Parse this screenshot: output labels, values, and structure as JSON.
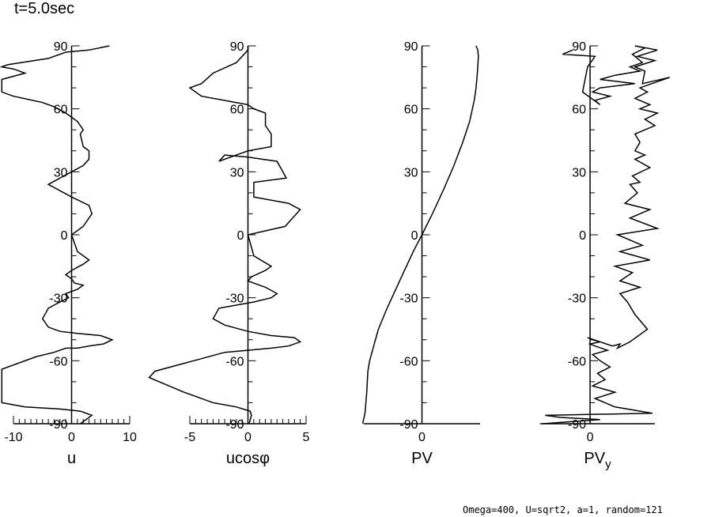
{
  "title": "t=5.0sec",
  "footer": "Omega=400, U=sqrt2, a=1, random=121",
  "chart_data": [
    {
      "type": "line",
      "name": "u",
      "xlabel": "u",
      "xlim": [
        -10,
        10
      ],
      "xticks": [
        -10,
        0,
        10
      ],
      "xtick_labels": [
        "-10",
        "0",
        "10"
      ],
      "ylim": [
        -90,
        90
      ],
      "yticks": [
        -90,
        -60,
        -30,
        0,
        30,
        60,
        90
      ],
      "ytick_labels": [
        "-90",
        "-60",
        "-30",
        "0",
        "30",
        "60",
        "90"
      ],
      "series": [
        {
          "name": "u",
          "x": [
            1.5,
            3.5,
            1.5,
            -2,
            -8,
            -12,
            -12,
            -6,
            -3,
            -2,
            -1,
            1,
            3,
            5.5,
            7,
            5,
            1,
            -2,
            -4,
            -5,
            -4,
            -2,
            -0.5,
            -1,
            1,
            2,
            0.5,
            0,
            -0.5,
            -1,
            0,
            2,
            3,
            1,
            0,
            2,
            3.5,
            3,
            0,
            -4,
            -2,
            2,
            3,
            3,
            2,
            1.5,
            2,
            1,
            -1,
            -3,
            -5,
            -10,
            -12,
            -12,
            -8,
            -10,
            -12,
            -11,
            -4,
            -1,
            3,
            6.5
          ],
          "y": [
            -90,
            -86,
            -84,
            -83,
            -82,
            -80,
            -64,
            -58,
            -56,
            -55,
            -54,
            -54,
            -53,
            -52,
            -50,
            -48,
            -47,
            -46,
            -44,
            -40,
            -35,
            -32,
            -30,
            -28,
            -26,
            -24,
            -23,
            -21,
            -20,
            -19,
            -17,
            -14,
            -12,
            -8,
            0,
            4,
            10,
            14,
            18,
            24,
            27,
            33,
            36,
            40,
            42,
            48,
            50,
            54,
            58,
            61,
            63,
            66,
            68,
            74,
            77,
            79,
            80,
            81,
            84,
            87,
            88,
            90
          ]
        }
      ]
    },
    {
      "type": "line",
      "name": "ucosphi",
      "xlabel": "ucosφ",
      "xlim": [
        -5,
        5
      ],
      "xticks": [
        -5,
        0,
        5
      ],
      "xtick_labels": [
        "-5",
        "0",
        "5"
      ],
      "ylim": [
        -90,
        90
      ],
      "yticks": [
        -90,
        -60,
        -30,
        0,
        30,
        60,
        90
      ],
      "ytick_labels": [
        "-90",
        "-60",
        "-30",
        "0",
        "30",
        "60",
        "90"
      ],
      "series": [
        {
          "name": "ucosφ",
          "x": [
            0.1,
            0.3,
            0.2,
            -1,
            -3,
            -5.5,
            -8.5,
            -8,
            -6,
            -4,
            -2,
            0,
            2,
            3.5,
            4.5,
            4,
            2,
            0,
            -2,
            -3,
            -2.5,
            0.5,
            2,
            2.5,
            1.5,
            0,
            0.3,
            1.5,
            2,
            0.5,
            0,
            3.2,
            4.5,
            3.5,
            0.5,
            0.5,
            3.3,
            2.5,
            0,
            -2,
            -2.5,
            0,
            2,
            2,
            1.5,
            1.5,
            1.5,
            0.5,
            0,
            -1,
            -4,
            -5,
            -4,
            -3,
            -1,
            0,
            0
          ],
          "y": [
            -90,
            -86,
            -84,
            -82,
            -80,
            -75,
            -68,
            -65,
            -62,
            -59,
            -56,
            -55,
            -54,
            -53,
            -51,
            -49,
            -48,
            -46,
            -43,
            -40,
            -35,
            -32,
            -30,
            -28,
            -25,
            -22,
            -20,
            -17,
            -15,
            -10,
            0,
            4,
            12,
            15,
            18,
            25,
            27,
            35,
            37,
            38,
            35,
            40,
            42,
            48,
            52,
            56,
            58,
            60,
            62,
            63,
            66,
            70,
            72,
            77,
            82,
            88,
            90
          ]
        }
      ]
    },
    {
      "type": "line",
      "name": "PV",
      "xlabel": "PV",
      "xlim": [
        -1,
        1
      ],
      "xticks": [
        0
      ],
      "xtick_labels": [
        "0"
      ],
      "ylim": [
        -90,
        90
      ],
      "yticks": [
        -90,
        -60,
        -30,
        0,
        30,
        60,
        90
      ],
      "ytick_labels": [
        "-90",
        "-60",
        "-30",
        "0",
        "30",
        "60",
        "90"
      ],
      "series": [
        {
          "name": "PV",
          "x": [
            -1.02,
            -0.98,
            -0.95,
            -0.93,
            -0.9,
            -0.85,
            -0.75,
            -0.6,
            -0.45,
            -0.3,
            -0.15,
            0,
            0.18,
            0.38,
            0.55,
            0.7,
            0.82,
            0.9,
            0.93,
            0.95,
            0.96,
            0.97,
            0.96,
            0.93
          ],
          "y": [
            -90,
            -85,
            -75,
            -65,
            -60,
            -55,
            -45,
            -35,
            -26,
            -17,
            -8,
            0,
            10,
            22,
            33,
            44,
            54,
            64,
            70,
            76,
            80,
            85,
            88,
            90
          ]
        }
      ]
    },
    {
      "type": "line",
      "name": "PVy",
      "xlabel": "PV",
      "xlabel_subscript": "y",
      "xlim": [
        -1,
        1.3
      ],
      "xticks": [
        0
      ],
      "xtick_labels": [
        "0"
      ],
      "ylim": [
        -90,
        90
      ],
      "yticks": [
        -90,
        -60,
        -30,
        0,
        30,
        60,
        90
      ],
      "ytick_labels": [
        "-90",
        "-60",
        "-30",
        "0",
        "30",
        "60",
        "90"
      ],
      "series": [
        {
          "name": "PV_y",
          "x": [
            -0.95,
            0.2,
            -0.6,
            -0.9,
            1.25,
            0.5,
            0.1,
            0.5,
            0.05,
            0.3,
            0.15,
            0.4,
            0.2,
            0.05,
            0.35,
            0.1,
            0,
            0.2,
            0.05,
            -0.05,
            0.45,
            0.6,
            0.55,
            0.8,
            1.15,
            0.9,
            0.75,
            0.6,
            1.0,
            0.6,
            0.85,
            0.5,
            1.2,
            0.6,
            1.05,
            0.55,
            1.35,
            0.8,
            1.2,
            0.7,
            0.95,
            0.8,
            1.0,
            0.85,
            1.2,
            0.9,
            1.1,
            0.9,
            1.0,
            0.9,
            1.3,
            1.1,
            1.35,
            1.0,
            1.2,
            0.9,
            1.15,
            1.0,
            1.6,
            1.05,
            1.1,
            0.9,
            1.3,
            0.95,
            1.35,
            0.9,
            1.1,
            0.85,
            1.05,
            0.8,
            1.0,
            0.5,
            0.2,
            0.9,
            0.2,
            0.05,
            0.4,
            0.1,
            0.2,
            -0.15,
            -0.05,
            0.1,
            -0.55,
            -0.35
          ],
          "y": [
            -90,
            -88,
            -87,
            -86,
            -85,
            -82,
            -78,
            -75,
            -72,
            -69,
            -66,
            -63,
            -60,
            -57,
            -55,
            -53,
            -52,
            -51,
            -50,
            -49,
            -53,
            -52,
            -54,
            -51,
            -45,
            -38,
            -32,
            -28,
            -25,
            -22,
            -18,
            -15,
            -12,
            -8,
            -5,
            0,
            3,
            8,
            12,
            15,
            20,
            24,
            25,
            28,
            32,
            36,
            38,
            40,
            44,
            48,
            52,
            55,
            58,
            60,
            62,
            65,
            68,
            70,
            75,
            72,
            78,
            80,
            83,
            85,
            88,
            90,
            89,
            86,
            82,
            80,
            78,
            76,
            74,
            72,
            70,
            68,
            66,
            64,
            62,
            68,
            80,
            85,
            86,
            88
          ]
        }
      ]
    }
  ]
}
